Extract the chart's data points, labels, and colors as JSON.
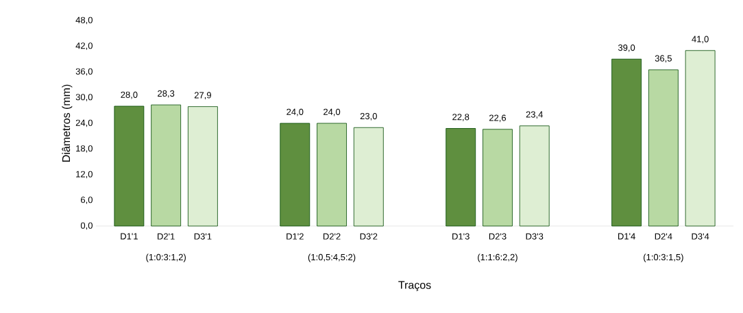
{
  "chart_data": {
    "type": "bar",
    "xlabel": "Traços",
    "ylabel": "Diâmetros (mm)",
    "categories": [
      "D1'1",
      "D2'1",
      "D3'1",
      "D1'2",
      "D2'2",
      "D3'2",
      "D1'3",
      "D2'3",
      "D3'3",
      "D1'4",
      "D2'4",
      "D3'4"
    ],
    "values": [
      28.0,
      28.3,
      27.9,
      24.0,
      24.0,
      23.0,
      22.8,
      22.6,
      23.4,
      39.0,
      36.5,
      41.0
    ],
    "value_labels": [
      "28,0",
      "28,3",
      "27,9",
      "24,0",
      "24,0",
      "23,0",
      "22,8",
      "22,6",
      "23,4",
      "39,0",
      "36,5",
      "41,0"
    ],
    "colors": [
      "#5f8f3f",
      "#b8d9a3",
      "#deeed3",
      "#5f8f3f",
      "#b8d9a3",
      "#deeed3",
      "#5f8f3f",
      "#b8d9a3",
      "#deeed3",
      "#5f8f3f",
      "#b8d9a3",
      "#deeed3"
    ],
    "annotations": [
      "(1:0:3:1,2)",
      "(1:0,5:4,5:2)",
      "(1:1:6:2,2)",
      "(1:0:3:1,5)"
    ],
    "ylim": [
      0,
      48
    ],
    "yticks": [
      {
        "value": 0,
        "label": "0,0"
      },
      {
        "value": 6,
        "label": "6,0"
      },
      {
        "value": 12,
        "label": "12,0"
      },
      {
        "value": 18,
        "label": "18,0"
      },
      {
        "value": 24,
        "label": "24,0"
      },
      {
        "value": 30,
        "label": "30,0"
      },
      {
        "value": 36,
        "label": "36,0"
      },
      {
        "value": 42,
        "label": "42,0"
      },
      {
        "value": 48,
        "label": "48,0"
      }
    ],
    "grid": false
  }
}
